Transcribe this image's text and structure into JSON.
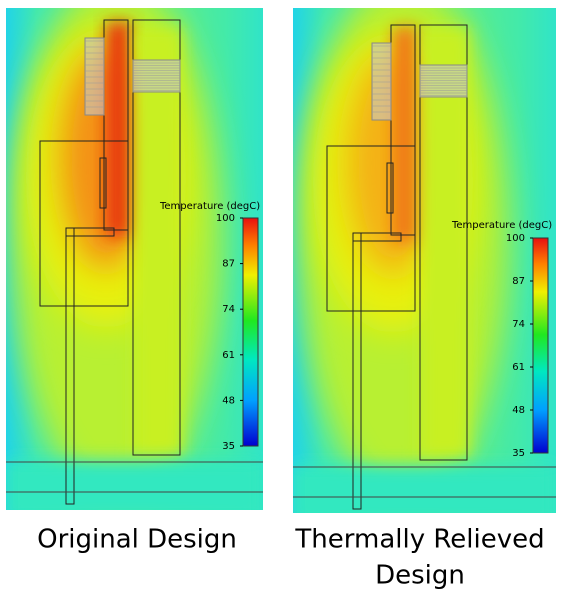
{
  "panels": [
    {
      "caption_lines": [
        "Original Design"
      ],
      "colorbar": {
        "title": "Temperature (degC)",
        "clim": [
          35,
          100
        ],
        "ticks": [
          100,
          87,
          74,
          61,
          48,
          35
        ]
      }
    },
    {
      "caption_lines": [
        "Thermally Relieved",
        "Design"
      ],
      "colorbar": {
        "title": "Temperature (degC)",
        "clim": [
          35,
          100
        ],
        "ticks": [
          100,
          87,
          74,
          61,
          48,
          35
        ]
      }
    }
  ]
}
